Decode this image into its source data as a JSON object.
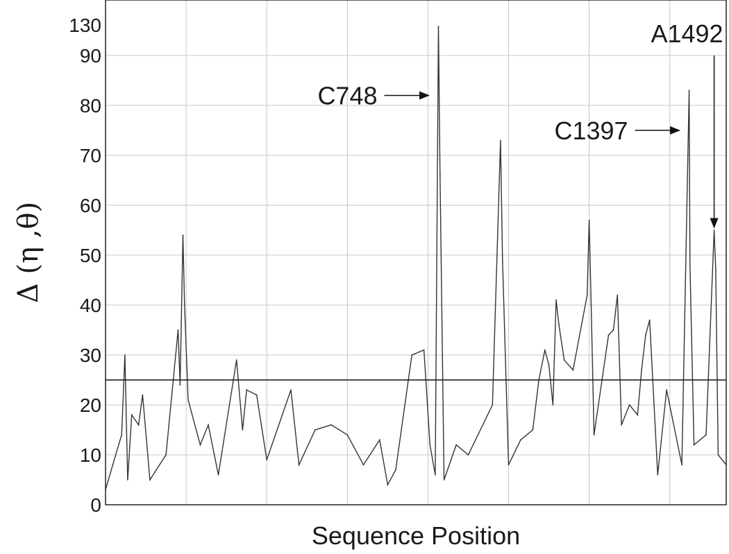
{
  "chart_data": {
    "type": "line",
    "xlabel": "Sequence Position",
    "ylabel": "Δ (η ,θ)",
    "y_axis": {
      "lower_range": [
        0,
        90
      ],
      "upper_break_value": 130,
      "tick_labels": [
        "0",
        "10",
        "20",
        "30",
        "40",
        "50",
        "60",
        "70",
        "80",
        "90",
        "130"
      ]
    },
    "grid": true,
    "threshold": 25,
    "x_range": [
      0,
      1540
    ],
    "series": [
      {
        "points": [
          [
            0,
            3
          ],
          [
            18,
            8
          ],
          [
            40,
            14
          ],
          [
            48,
            30
          ],
          [
            55,
            5
          ],
          [
            65,
            18
          ],
          [
            82,
            16
          ],
          [
            92,
            22
          ],
          [
            110,
            5
          ],
          [
            150,
            10
          ],
          [
            180,
            35
          ],
          [
            185,
            24
          ],
          [
            192,
            54
          ],
          [
            196,
            40
          ],
          [
            205,
            21
          ],
          [
            235,
            12
          ],
          [
            255,
            16
          ],
          [
            280,
            6
          ],
          [
            325,
            29
          ],
          [
            340,
            15
          ],
          [
            350,
            23
          ],
          [
            375,
            22
          ],
          [
            400,
            9
          ],
          [
            460,
            23
          ],
          [
            480,
            8
          ],
          [
            520,
            15
          ],
          [
            560,
            16
          ],
          [
            600,
            14
          ],
          [
            640,
            8
          ],
          [
            680,
            13
          ],
          [
            700,
            4
          ],
          [
            720,
            7
          ],
          [
            760,
            30
          ],
          [
            790,
            31
          ],
          [
            805,
            12
          ],
          [
            818,
            6
          ],
          [
            826,
            128
          ],
          [
            830,
            66
          ],
          [
            840,
            5
          ],
          [
            870,
            12
          ],
          [
            900,
            10
          ],
          [
            960,
            20
          ],
          [
            980,
            73
          ],
          [
            985,
            49
          ],
          [
            1000,
            8
          ],
          [
            1030,
            13
          ],
          [
            1060,
            15
          ],
          [
            1075,
            25
          ],
          [
            1090,
            31
          ],
          [
            1100,
            28
          ],
          [
            1110,
            20
          ],
          [
            1118,
            41
          ],
          [
            1125,
            36
          ],
          [
            1138,
            29
          ],
          [
            1160,
            27
          ],
          [
            1195,
            42
          ],
          [
            1200,
            57
          ],
          [
            1205,
            40
          ],
          [
            1212,
            14
          ],
          [
            1248,
            34
          ],
          [
            1260,
            35
          ],
          [
            1270,
            42
          ],
          [
            1280,
            16
          ],
          [
            1300,
            20
          ],
          [
            1320,
            18
          ],
          [
            1330,
            27
          ],
          [
            1340,
            34
          ],
          [
            1350,
            37
          ],
          [
            1370,
            6
          ],
          [
            1392,
            23
          ],
          [
            1430,
            8
          ],
          [
            1448,
            83
          ],
          [
            1450,
            48
          ],
          [
            1460,
            12
          ],
          [
            1490,
            14
          ],
          [
            1510,
            55
          ],
          [
            1514,
            47
          ],
          [
            1520,
            10
          ],
          [
            1540,
            8
          ]
        ]
      }
    ],
    "annotations": [
      {
        "text": "C748",
        "target_x": 826,
        "target_y": 82
      },
      {
        "text": "C1397",
        "target_x": 1448,
        "target_y": 75
      },
      {
        "text": "A1492",
        "target_x": 1510,
        "target_y": 55
      }
    ]
  }
}
